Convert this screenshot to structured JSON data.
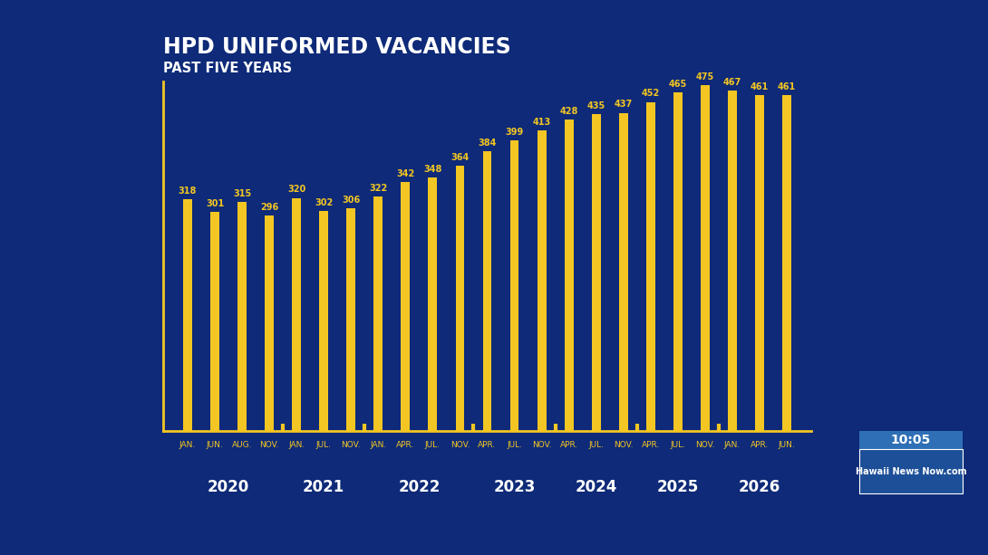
{
  "chart_data": {
    "type": "bar",
    "title": "HPD UNIFORMED VACANCIES",
    "subtitle": "PAST FIVE YEARS",
    "categories": [
      "JAN.",
      "JUN.",
      "AUG.",
      "NOV.",
      "JAN.",
      "JUL.",
      "NOV.",
      "JAN.",
      "APR.",
      "JUL.",
      "NOV.",
      "APR.",
      "JUL.",
      "NOV.",
      "APR.",
      "JUL.",
      "NOV.",
      "APR.",
      "JUL.",
      "NOV.",
      "JAN.",
      "APR.",
      "JUN."
    ],
    "groups": [
      "2020",
      "2020",
      "2020",
      "2020",
      "2021",
      "2021",
      "2021",
      "2022",
      "2022",
      "2022",
      "2022",
      "2023",
      "2023",
      "2023",
      "2024",
      "2024",
      "2024",
      "2025",
      "2025",
      "2025",
      "2026",
      "2026",
      "2026"
    ],
    "values": [
      318,
      301,
      315,
      296,
      320,
      302,
      306,
      322,
      342,
      348,
      364,
      384,
      399,
      413,
      428,
      435,
      437,
      452,
      465,
      475,
      467,
      461,
      461
    ],
    "color": "#f3c623",
    "ylim": [
      0,
      480
    ],
    "yticks": [],
    "grid": false,
    "data_labels": true,
    "tick_labels": "x",
    "annotations": [
      "10:05",
      "Hawaii News Now.com"
    ]
  }
}
